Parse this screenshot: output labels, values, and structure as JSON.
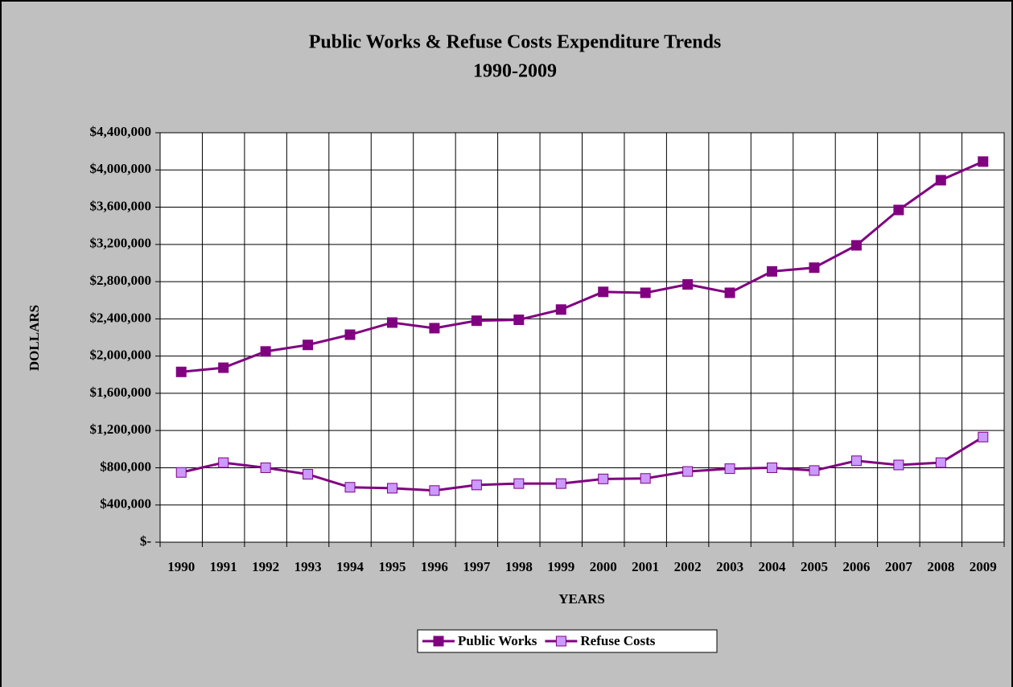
{
  "chart_data": {
    "type": "line",
    "title": "Public Works & Refuse Costs Expenditure Trends",
    "subtitle": "1990-2009",
    "x_label": "YEARS",
    "y_label": "DOLLARS",
    "categories": [
      "1990",
      "1991",
      "1992",
      "1993",
      "1994",
      "1995",
      "1996",
      "1997",
      "1998",
      "1999",
      "2000",
      "2001",
      "2002",
      "2003",
      "2004",
      "2005",
      "2006",
      "2007",
      "2008",
      "2009"
    ],
    "series": [
      {
        "name": "Public Works",
        "color": "#800080",
        "marker_fill": "#800080",
        "values": [
          1830000,
          1875000,
          2050000,
          2120000,
          2230000,
          2360000,
          2300000,
          2380000,
          2390000,
          2500000,
          2690000,
          2680000,
          2770000,
          2680000,
          2910000,
          2950000,
          3190000,
          3570000,
          3890000,
          4090000
        ]
      },
      {
        "name": "Refuse Costs",
        "color": "#800080",
        "marker_fill": "#cc99ff",
        "values": [
          750000,
          855000,
          800000,
          730000,
          590000,
          580000,
          555000,
          615000,
          630000,
          630000,
          680000,
          685000,
          760000,
          790000,
          800000,
          770000,
          875000,
          830000,
          855000,
          1130000
        ]
      }
    ],
    "ylim": [
      0,
      4400000
    ],
    "yticks": [
      {
        "value": 0,
        "label": "$-"
      },
      {
        "value": 400000,
        "label": "$400,000"
      },
      {
        "value": 800000,
        "label": "$800,000"
      },
      {
        "value": 1200000,
        "label": "$1,200,000"
      },
      {
        "value": 1600000,
        "label": "$1,600,000"
      },
      {
        "value": 2000000,
        "label": "$2,000,000"
      },
      {
        "value": 2400000,
        "label": "$2,400,000"
      },
      {
        "value": 2800000,
        "label": "$2,800,000"
      },
      {
        "value": 3200000,
        "label": "$3,200,000"
      },
      {
        "value": 3600000,
        "label": "$3,600,000"
      },
      {
        "value": 4000000,
        "label": "$4,000,000"
      },
      {
        "value": 4400000,
        "label": "$4,400,000"
      }
    ],
    "grid": true,
    "legend": "bottom"
  }
}
